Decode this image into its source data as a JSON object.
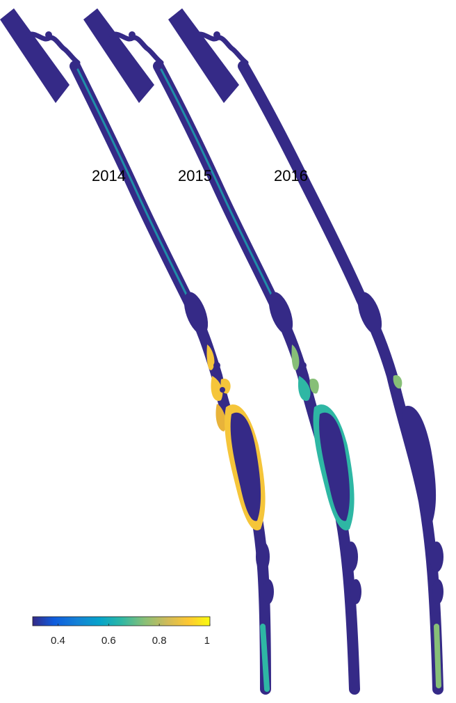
{
  "panels": [
    {
      "year": "2014"
    },
    {
      "year": "2015"
    },
    {
      "year": "2016"
    }
  ],
  "colorbar": {
    "min": 0.3,
    "max": 1,
    "ticks": [
      "0.4",
      "0.6",
      "0.8",
      "1"
    ],
    "tick_values": [
      0.4,
      0.6,
      0.8,
      1.0
    ],
    "colormap": [
      "#352a87",
      "#0f5cdd",
      "#1481d6",
      "#06a4ca",
      "#2eb7a4",
      "#87bf77",
      "#d1bb59",
      "#fec832",
      "#f9fb0e"
    ]
  },
  "colors": {
    "low": "#352a87",
    "mid": "#1aa7b0",
    "high": "#f5c53a",
    "top": "#f9fb0e"
  }
}
